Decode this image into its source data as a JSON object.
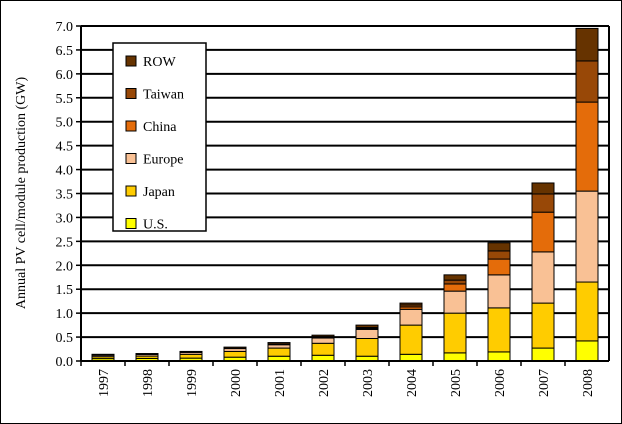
{
  "chart_data": {
    "type": "bar",
    "stacked": true,
    "title": "",
    "xlabel": "",
    "ylabel": "Annual PV cell/module production (GW)",
    "ylim": [
      0,
      7.0
    ],
    "ytick_step": 0.5,
    "yticks": [
      "0.0",
      "0.5",
      "1.0",
      "1.5",
      "2.0",
      "2.5",
      "3.0",
      "3.5",
      "4.0",
      "4.5",
      "5.0",
      "5.5",
      "6.0",
      "6.5",
      "7.0"
    ],
    "grid": true,
    "legend_position": "top-left",
    "categories": [
      "1997",
      "1998",
      "1999",
      "2000",
      "2001",
      "2002",
      "2003",
      "2004",
      "2005",
      "2006",
      "2007",
      "2008"
    ],
    "series": [
      {
        "name": "U.S.",
        "color": "#FFFF00",
        "values": [
          0.05,
          0.054,
          0.06,
          0.08,
          0.1,
          0.12,
          0.1,
          0.14,
          0.17,
          0.19,
          0.27,
          0.42
        ]
      },
      {
        "name": "Japan",
        "color": "#FFCC00",
        "values": [
          0.04,
          0.049,
          0.08,
          0.12,
          0.17,
          0.25,
          0.37,
          0.61,
          0.83,
          0.92,
          0.94,
          1.23
        ]
      },
      {
        "name": "Europe",
        "color": "#F9C195",
        "values": [
          0.03,
          0.033,
          0.04,
          0.06,
          0.07,
          0.11,
          0.19,
          0.33,
          0.46,
          0.69,
          1.07,
          1.9
        ]
      },
      {
        "name": "China",
        "color": "#E46C0A",
        "values": [
          0,
          0,
          0,
          0,
          0.005,
          0.01,
          0.02,
          0.05,
          0.15,
          0.33,
          0.83,
          1.86
        ]
      },
      {
        "name": "Taiwan",
        "color": "#984807",
        "values": [
          0,
          0,
          0,
          0.005,
          0.01,
          0.02,
          0.02,
          0.04,
          0.08,
          0.17,
          0.38,
          0.86
        ]
      },
      {
        "name": "ROW",
        "color": "#663300",
        "values": [
          0.02,
          0.02,
          0.02,
          0.025,
          0.03,
          0.03,
          0.05,
          0.04,
          0.11,
          0.17,
          0.23,
          0.68
        ]
      }
    ]
  }
}
